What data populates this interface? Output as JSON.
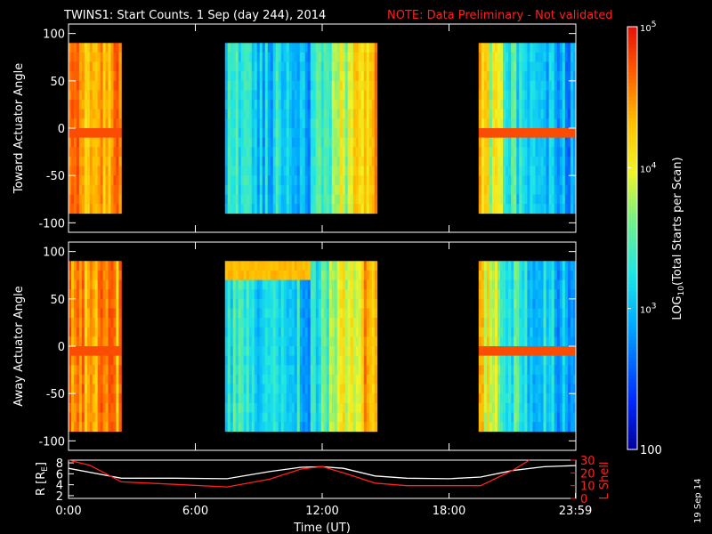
{
  "title": {
    "main": "TWINS1: Start Counts.  1 Sep (day 244), 2014",
    "note": "NOTE: Data Preliminary - Not validated",
    "note_color": "#ff2020"
  },
  "stamp": "19 Sep 14",
  "chart_data": [
    {
      "type": "heatmap",
      "ylabel": "Toward Actuator Angle",
      "ylim": [
        -110,
        110
      ],
      "yticks": [
        100,
        50,
        0,
        -50,
        -100
      ],
      "xlim": [
        0,
        24
      ],
      "data_windows_hours": [
        [
          0.0,
          2.5
        ],
        [
          7.4,
          14.6
        ],
        [
          19.4,
          24.0
        ]
      ],
      "angle_range": [
        -90,
        90
      ]
    },
    {
      "type": "heatmap",
      "ylabel": "Away Actuator Angle",
      "ylim": [
        -110,
        110
      ],
      "yticks": [
        100,
        50,
        0,
        -50,
        -100
      ],
      "xlim": [
        0,
        24
      ],
      "data_windows_hours": [
        [
          0.0,
          2.5
        ],
        [
          7.4,
          14.6
        ],
        [
          19.4,
          24.0
        ]
      ],
      "angle_range": [
        -90,
        90
      ]
    },
    {
      "type": "line",
      "ylabel_left": "R [R",
      "ylabel_left_sub": "E",
      "ylabel_left_end": "]",
      "ylabel_right": "L Shell",
      "left_yticks": [
        2,
        4,
        6,
        8
      ],
      "left_ylim": [
        1.5,
        8.5
      ],
      "right_yticks": [
        0,
        10,
        20,
        30
      ],
      "right_ylim": [
        0,
        30
      ],
      "x_ticks": [
        "0:00",
        "6:00",
        "12:00",
        "18:00",
        "23:59"
      ],
      "x_tick_hours": [
        0,
        6,
        12,
        18,
        23.98
      ],
      "xlabel": "Time (UT)",
      "series": [
        {
          "color": "#ffffff",
          "x": [
            0,
            2.5,
            5,
            7.5,
            9.5,
            11,
            12,
            13,
            14.5,
            16,
            18,
            19.5,
            21,
            22.5,
            24
          ],
          "y": [
            7.0,
            5.2,
            5.2,
            5.1,
            6.4,
            7.2,
            7.3,
            7.0,
            5.6,
            5.2,
            5.1,
            5.4,
            6.6,
            7.3,
            7.5
          ]
        },
        {
          "color": "#ff2020",
          "axis": "right",
          "x": [
            0,
            1.0,
            2.5,
            5.0,
            7.5,
            9.5,
            11,
            12.0,
            13,
            14.5,
            16,
            18,
            19.5,
            21.0,
            21.8
          ],
          "y": [
            30,
            26,
            13,
            11,
            9,
            15,
            23,
            25,
            20,
            12,
            10,
            10,
            10,
            22,
            30
          ]
        }
      ]
    }
  ],
  "colorbar": {
    "label": "LOG10(Total Starts per Scan)",
    "label_main": "LOG",
    "label_sub": "10",
    "label_end": "(Total Starts per Scan)",
    "ticks": [
      {
        "base": "10",
        "exp": "5",
        "value": 5
      },
      {
        "base": "10",
        "exp": "4",
        "value": 4
      },
      {
        "base": "10",
        "exp": "3",
        "value": 3
      }
    ],
    "bottom_tick": "100",
    "range": [
      2,
      5
    ]
  }
}
